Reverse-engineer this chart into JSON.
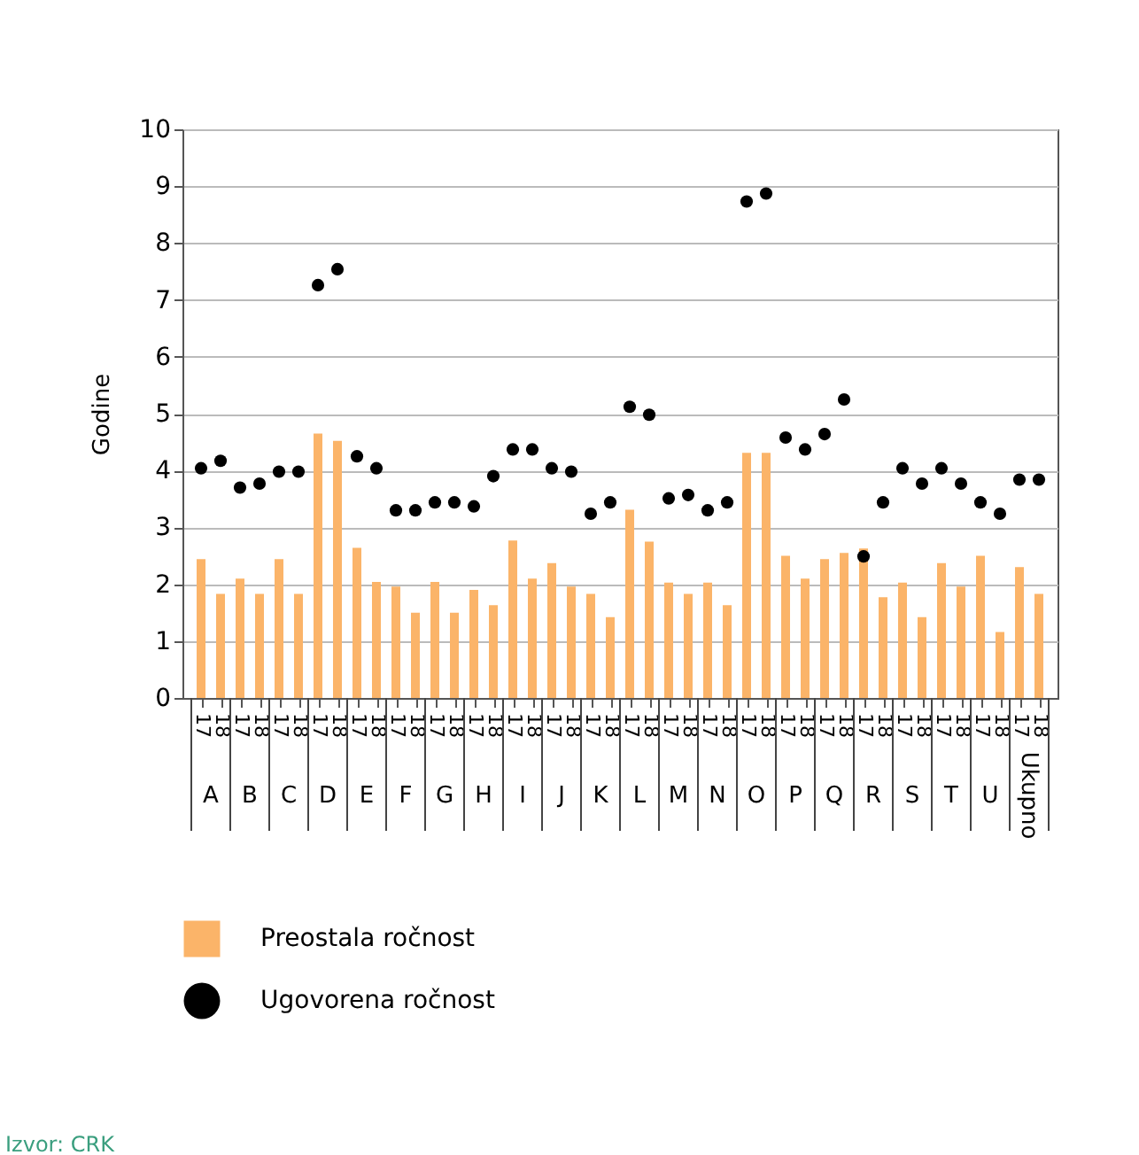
{
  "chart_data": {
    "type": "bar",
    "ylabel": "Godine",
    "categories": [
      "17",
      "18",
      "17",
      "18",
      "17",
      "18",
      "17",
      "18",
      "17",
      "18",
      "17",
      "18",
      "17",
      "18",
      "17",
      "18",
      "17",
      "18",
      "17",
      "18",
      "17",
      "18",
      "17",
      "18",
      "17",
      "18",
      "17",
      "18",
      "17",
      "18",
      "17",
      "18",
      "17",
      "18",
      "17",
      "18",
      "17",
      "18",
      "17",
      "18",
      "17",
      "18",
      "17",
      "18"
    ],
    "series": [
      {
        "name": "Preostala ročnost",
        "color": "#fbb469",
        "values": [
          2.44,
          1.83,
          2.1,
          1.83,
          2.44,
          1.83,
          4.65,
          4.52,
          2.64,
          2.04,
          1.96,
          1.5,
          2.04,
          1.5,
          1.9,
          1.63,
          2.77,
          2.1,
          2.37,
          1.96,
          1.83,
          1.42,
          3.31,
          2.75,
          2.03,
          1.83,
          2.03,
          1.63,
          4.31,
          4.31,
          2.5,
          2.1,
          2.44,
          2.55,
          2.63,
          1.77,
          2.03,
          1.42,
          2.37,
          1.96,
          2.5,
          1.16,
          2.3,
          1.83
        ]
      },
      {
        "name": "Ugovorena ročnost",
        "type": "scatter",
        "color": "#000000",
        "values": [
          4.04,
          4.17,
          3.7,
          3.77,
          3.98,
          3.98,
          7.26,
          7.54,
          4.25,
          4.04,
          3.3,
          3.3,
          3.44,
          3.44,
          3.37,
          3.9,
          4.37,
          4.37,
          4.04,
          3.98,
          3.24,
          3.44,
          5.12,
          4.98,
          3.51,
          3.57,
          3.3,
          3.44,
          8.73,
          8.87,
          4.58,
          4.37,
          4.64,
          5.25,
          2.49,
          3.44,
          4.04,
          3.77,
          4.04,
          3.77,
          3.44,
          3.24,
          3.84,
          3.84
        ]
      }
    ],
    "ylim": [
      0,
      10
    ],
    "yticks": [
      0,
      1,
      2,
      3,
      4,
      5,
      6,
      7,
      8,
      9,
      10
    ],
    "grid": "y",
    "legend": "bottom left",
    "marker": "circle",
    "annotations": [
      "A",
      "B",
      "C",
      "D",
      "E",
      "F",
      "G",
      "H",
      "I",
      "J",
      "K",
      "L",
      "M",
      "N",
      "O",
      "P",
      "Q",
      "R",
      "S",
      "T",
      "U",
      "Ukupno",
      "Izvor: CRK"
    ]
  }
}
